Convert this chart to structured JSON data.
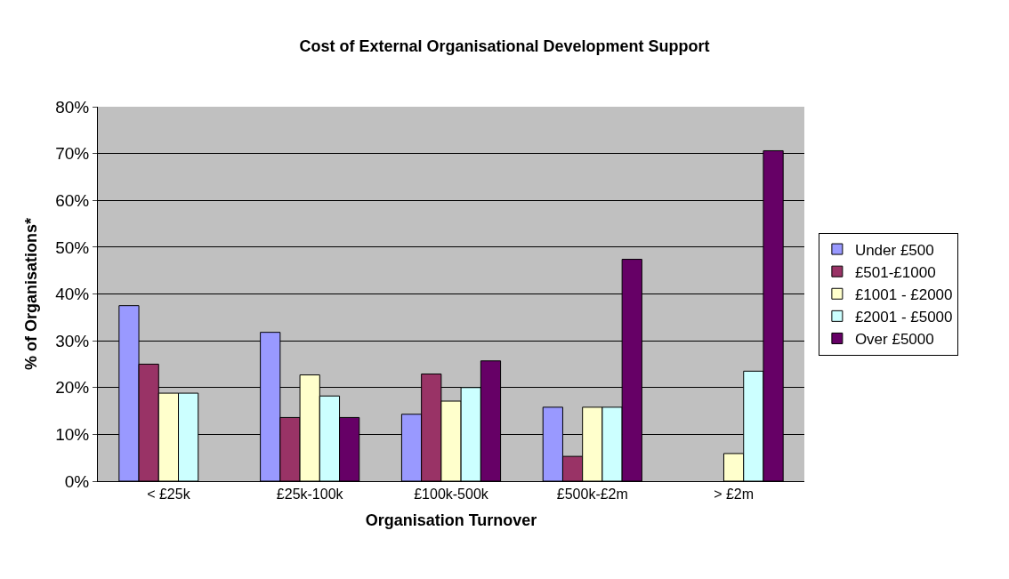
{
  "chart_data": {
    "type": "bar",
    "title": "Cost of External Organisational Development Support",
    "xlabel": "Organisation Turnover",
    "ylabel": "% of Organisations*",
    "categories": [
      "< £25k",
      "£25k-100k",
      "£100k-500k",
      "£500k-£2m",
      "> £2m"
    ],
    "series": [
      {
        "name": "Under £500",
        "color": "#9999ff",
        "values": [
          37.5,
          31.8,
          14.3,
          15.8,
          null
        ]
      },
      {
        "name": "£501-£1000",
        "color": "#993366",
        "values": [
          25,
          13.6,
          22.9,
          5.3,
          null
        ]
      },
      {
        "name": "£1001 - £2000",
        "color": "#ffffcc",
        "values": [
          18.8,
          22.7,
          17.1,
          15.8,
          5.9
        ]
      },
      {
        "name": "£2001 - £5000",
        "color": "#ccffff",
        "values": [
          18.8,
          18.2,
          20,
          15.8,
          23.5
        ]
      },
      {
        "name": "Over £5000",
        "color": "#660066",
        "values": [
          null,
          13.6,
          25.7,
          47.4,
          70.6
        ]
      }
    ],
    "ylim": [
      0,
      80
    ],
    "yticks": [
      {
        "value": 0,
        "label": "0%"
      },
      {
        "value": 10,
        "label": "10%"
      },
      {
        "value": 20,
        "label": "20%"
      },
      {
        "value": 30,
        "label": "30%"
      },
      {
        "value": 40,
        "label": "40%"
      },
      {
        "value": 50,
        "label": "50%"
      },
      {
        "value": 60,
        "label": "60%"
      },
      {
        "value": 70,
        "label": "70%"
      },
      {
        "value": 80,
        "label": "80%"
      }
    ],
    "grid": "y",
    "legend": "right"
  }
}
